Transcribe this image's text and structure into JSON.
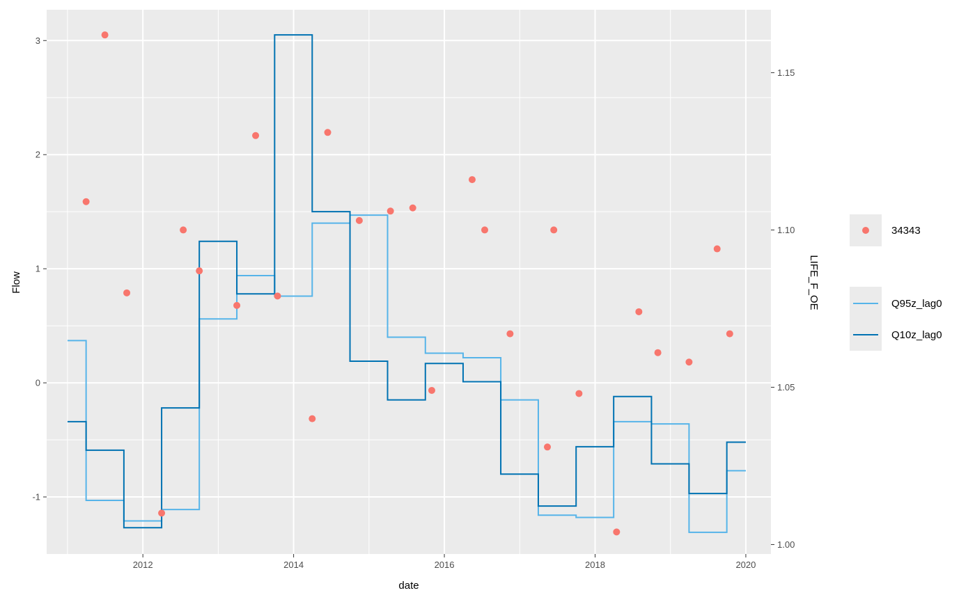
{
  "chart_data": {
    "type": "line",
    "xlabel": "date",
    "ylabel": "Flow",
    "y2label": "LIFE_F_OE",
    "x_ticks": [
      "2012",
      "2014",
      "2016",
      "2018",
      "2020"
    ],
    "y_ticks": [
      "-1",
      "0",
      "1",
      "2",
      "3"
    ],
    "y2_ticks": [
      "1.00",
      "1.05",
      "1.10",
      "1.15"
    ],
    "xlim": [
      "2010-09-22",
      "2020-05-02"
    ],
    "ylim": [
      -1.5,
      3.27
    ],
    "y2lim": [
      0.997,
      1.17
    ],
    "grid": true,
    "legend_position": "right",
    "points_series": {
      "name": "34343",
      "color": "#F8766D",
      "axis": "secondary",
      "points": [
        {
          "x": "2011-04-01",
          "y": 1.109
        },
        {
          "x": "2011-07-01",
          "y": 1.162
        },
        {
          "x": "2011-10-15",
          "y": 1.08
        },
        {
          "x": "2012-04-01",
          "y": 1.01
        },
        {
          "x": "2012-07-15",
          "y": 1.1
        },
        {
          "x": "2012-10-01",
          "y": 1.087
        },
        {
          "x": "2013-04-01",
          "y": 1.076
        },
        {
          "x": "2013-07-01",
          "y": 1.13
        },
        {
          "x": "2013-10-15",
          "y": 1.079
        },
        {
          "x": "2014-04-01",
          "y": 1.04
        },
        {
          "x": "2014-06-15",
          "y": 1.131
        },
        {
          "x": "2014-11-15",
          "y": 1.103
        },
        {
          "x": "2015-04-15",
          "y": 1.106
        },
        {
          "x": "2015-08-01",
          "y": 1.107
        },
        {
          "x": "2015-11-01",
          "y": 1.049
        },
        {
          "x": "2016-05-15",
          "y": 1.116
        },
        {
          "x": "2016-07-15",
          "y": 1.1
        },
        {
          "x": "2016-11-15",
          "y": 1.067
        },
        {
          "x": "2017-05-15",
          "y": 1.031
        },
        {
          "x": "2017-06-15",
          "y": 1.1
        },
        {
          "x": "2017-10-15",
          "y": 1.048
        },
        {
          "x": "2018-04-15",
          "y": 1.004
        },
        {
          "x": "2018-08-01",
          "y": 1.074
        },
        {
          "x": "2018-11-01",
          "y": 1.061
        },
        {
          "x": "2019-04-01",
          "y": 1.058
        },
        {
          "x": "2019-08-15",
          "y": 1.094
        },
        {
          "x": "2019-10-15",
          "y": 1.067
        }
      ]
    },
    "series": [
      {
        "name": "Q95z_lag0",
        "color": "#56B4E9",
        "step_x": [
          "2011-01-01",
          "2011-04-01",
          "2011-10-01",
          "2012-04-01",
          "2012-10-01",
          "2013-04-01",
          "2013-10-01",
          "2014-04-01",
          "2014-10-01",
          "2015-04-01",
          "2015-10-01",
          "2016-04-01",
          "2016-10-01",
          "2017-04-01",
          "2017-10-01",
          "2018-04-01",
          "2018-10-01",
          "2019-04-01",
          "2019-10-01",
          "2020-01-01"
        ],
        "values": [
          0.37,
          -1.03,
          -1.21,
          -1.11,
          0.56,
          0.94,
          0.76,
          1.4,
          1.47,
          0.4,
          0.26,
          0.22,
          -0.15,
          -1.16,
          -1.18,
          -0.34,
          -0.36,
          -1.31,
          -0.77,
          -0.77
        ]
      },
      {
        "name": "Q10z_lag0",
        "color": "#0072B2",
        "step_x": [
          "2011-01-01",
          "2011-04-01",
          "2011-10-01",
          "2012-04-01",
          "2012-10-01",
          "2013-04-01",
          "2013-10-01",
          "2014-04-01",
          "2014-10-01",
          "2015-04-01",
          "2015-10-01",
          "2016-04-01",
          "2016-10-01",
          "2017-04-01",
          "2017-10-01",
          "2018-04-01",
          "2018-10-01",
          "2019-04-01",
          "2019-10-01",
          "2020-01-01"
        ],
        "values": [
          -0.34,
          -0.59,
          -1.27,
          -0.22,
          1.24,
          0.78,
          3.05,
          1.5,
          0.19,
          -0.15,
          0.17,
          0.01,
          -0.8,
          -1.08,
          -0.56,
          -0.12,
          -0.71,
          -0.97,
          -0.52,
          -0.52
        ]
      }
    ]
  }
}
